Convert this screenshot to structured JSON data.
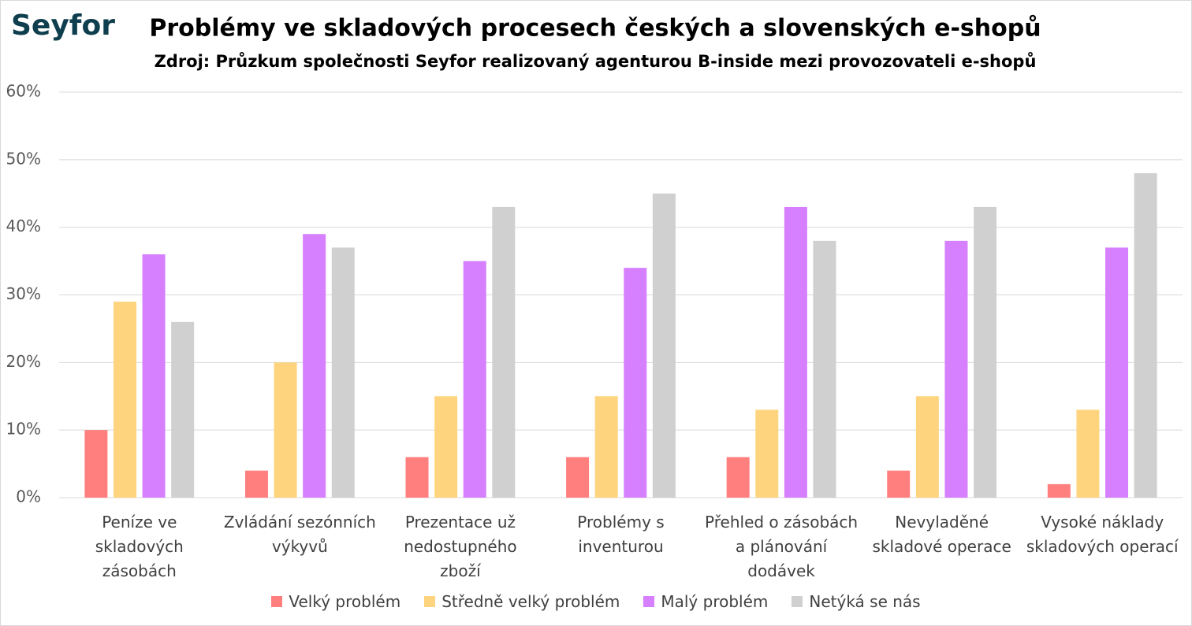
{
  "logo": "Seyfor",
  "chart_data": {
    "type": "bar",
    "title": "Problémy ve skladových procesech českých a slovenských e-shopů",
    "subtitle": "Zdroj: Průzkum společnosti Seyfor realizovaný agenturou B-inside mezi provozovateli e-shopů",
    "categories": [
      "Peníze ve skladových zásobách",
      "Zvládání sezónních výkyvů",
      "Prezentace už nedostupného zboží",
      "Problémy s inventurou",
      "Přehled o zásobách a plánování dodávek",
      "Nevyladěné skladové operace",
      "Vysoké náklady skladových operací"
    ],
    "series": [
      {
        "name": "Velký problém",
        "color": "#ff7f7f",
        "values": [
          10,
          4,
          6,
          6,
          6,
          4,
          2
        ]
      },
      {
        "name": "Středně velký problém",
        "color": "#ffd47f",
        "values": [
          29,
          20,
          15,
          15,
          13,
          15,
          13
        ]
      },
      {
        "name": "Malý problém",
        "color": "#d67fff",
        "values": [
          36,
          39,
          35,
          34,
          43,
          38,
          37
        ]
      },
      {
        "name": "Netýká se nás",
        "color": "#d0d0d0",
        "values": [
          26,
          37,
          43,
          45,
          38,
          43,
          48
        ]
      }
    ],
    "ylim": [
      0,
      60
    ],
    "yticks": [
      {
        "value": 0,
        "label": "0%"
      },
      {
        "value": 10,
        "label": "10%"
      },
      {
        "value": 20,
        "label": "20%"
      },
      {
        "value": 30,
        "label": "30%"
      },
      {
        "value": 40,
        "label": "40%"
      },
      {
        "value": 50,
        "label": "50%"
      },
      {
        "value": 60,
        "label": "60%"
      }
    ],
    "grid": true,
    "legend": "bottom"
  }
}
